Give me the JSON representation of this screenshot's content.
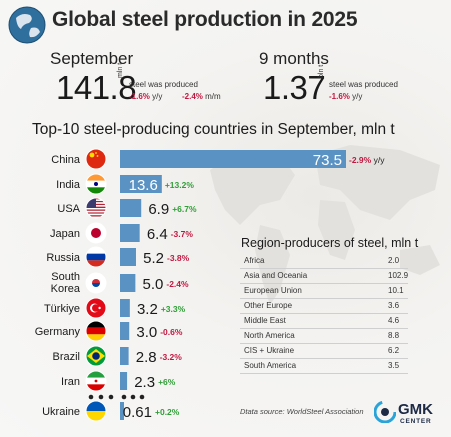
{
  "header": {
    "title": "Global steel production in 2025"
  },
  "summary": {
    "september": {
      "label": "September",
      "value": "141.8",
      "unit": "mln t",
      "note": "steel was produced",
      "yoy": "-1.6%",
      "yoy_label": "y/y",
      "mom": "-2.4%",
      "mom_label": "m/m"
    },
    "nine_months": {
      "label": "9 months",
      "value": "1.37",
      "unit": "bln t",
      "note": "steel was produced",
      "yoy": "-1.6%",
      "yoy_label": "y/y"
    }
  },
  "chart_data": [
    {
      "type": "bar",
      "title": "Top-10 steel-producing countries in September, mln t",
      "orientation": "horizontal",
      "categories": [
        "China",
        "India",
        "USA",
        "Japan",
        "Russia",
        "South Korea",
        "Türkiye",
        "Germany",
        "Brazil",
        "Iran",
        "Ukraine"
      ],
      "values": [
        73.5,
        13.6,
        6.9,
        6.4,
        5.2,
        5.0,
        3.2,
        3.0,
        2.8,
        2.3,
        0.61
      ],
      "value_labels": [
        "73.5",
        "13.6",
        "6.9",
        "6.4",
        "5.2",
        "5.0",
        "3.2",
        "3.0",
        "2.8",
        "2.3",
        "0.61"
      ],
      "changes": [
        "-2.9% y/y",
        "+13.2%",
        "+6.7%",
        "-3.7%",
        "-3.8%",
        "-2.4%",
        "+3.3%",
        "-0.6%",
        "-3.2%",
        "+6%",
        "+0.2%"
      ],
      "change_colors": [
        "red",
        "green",
        "green",
        "red",
        "red",
        "red",
        "green",
        "red",
        "red",
        "green",
        "green"
      ],
      "flag_icons": [
        "china-flag-icon",
        "india-flag-icon",
        "usa-flag-icon",
        "japan-flag-icon",
        "russia-flag-icon",
        "south-korea-flag-icon",
        "turkiye-flag-icon",
        "germany-flag-icon",
        "brazil-flag-icon",
        "iran-flag-icon",
        "ukraine-flag-icon"
      ],
      "colors": {
        "bar": "#5b92c4",
        "red": "#c01840",
        "green": "#2f9e36"
      }
    },
    {
      "type": "table",
      "title": "Region-producers of steel, mln t",
      "rows": [
        {
          "region": "Africa",
          "value": "2.0"
        },
        {
          "region": "Asia and Oceania",
          "value": "102.9"
        },
        {
          "region": "European Union",
          "value": "10.1"
        },
        {
          "region": "Other Europe",
          "value": "3.6"
        },
        {
          "region": "Middle East",
          "value": "4.6"
        },
        {
          "region": "North America",
          "value": "8.8"
        },
        {
          "region": "CIS + Ukraine",
          "value": "6.2"
        },
        {
          "region": "South America",
          "value": "3.5"
        }
      ]
    }
  ],
  "footer": {
    "source": "Dtata source: WorldSteel Association",
    "brand": "GMK",
    "brand_sub": "CENTER"
  }
}
